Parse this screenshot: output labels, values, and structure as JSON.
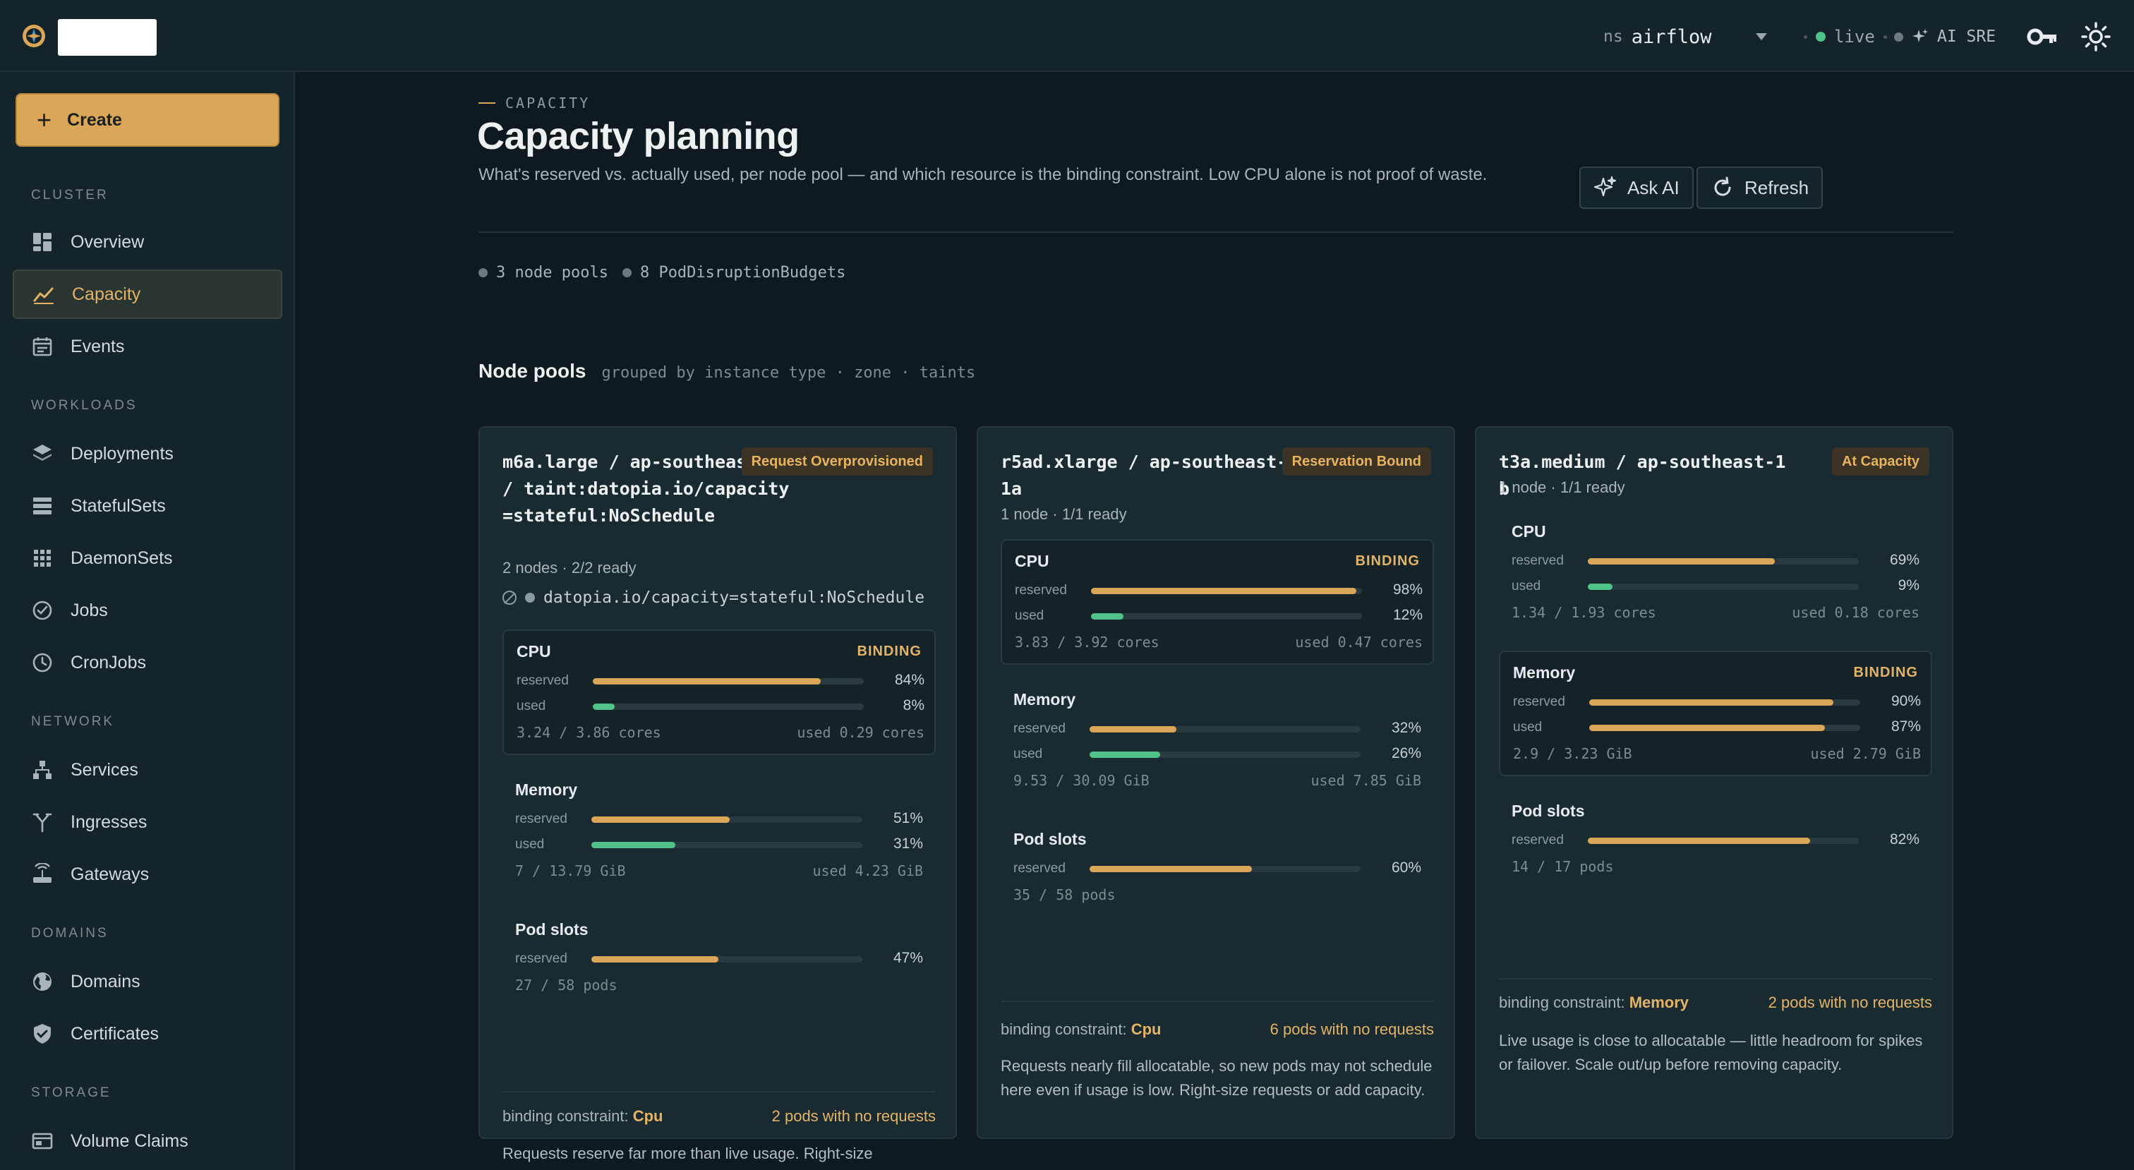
{
  "topbar": {
    "ns_prefix": "ns",
    "namespace": "airflow",
    "live_label": "live",
    "ai_sre_label": "AI SRE"
  },
  "sidebar": {
    "create_label": "Create",
    "sections": {
      "cluster": "CLUSTER",
      "workloads": "WORKLOADS",
      "network": "NETWORK",
      "domains": "DOMAINS",
      "storage": "STORAGE"
    },
    "items": {
      "overview": "Overview",
      "capacity": "Capacity",
      "events": "Events",
      "deployments": "Deployments",
      "statefulsets": "StatefulSets",
      "daemonsets": "DaemonSets",
      "jobs": "Jobs",
      "cronjobs": "CronJobs",
      "services": "Services",
      "ingresses": "Ingresses",
      "gateways": "Gateways",
      "domains": "Domains",
      "certificates": "Certificates",
      "volume_claims": "Volume Claims"
    },
    "active": "capacity"
  },
  "page": {
    "eyebrow": "CAPACITY",
    "title": "Capacity planning",
    "subtitle": "What's reserved vs. actually used, per node pool — and which resource is the binding constraint. Low CPU alone is not proof of waste.",
    "ask_ai_label": "Ask AI",
    "refresh_label": "Refresh",
    "summary_node_pools": "3 node pools",
    "summary_pdbs": "8 PodDisruptionBudgets",
    "node_pools_title": "Node pools",
    "node_pools_subtitle": "grouped by instance type · zone · taints"
  },
  "labels": {
    "reserved": "reserved",
    "used": "used",
    "binding": "BINDING",
    "binding_constraint": "binding constraint:",
    "cpu": "CPU",
    "memory": "Memory",
    "pod_slots": "Pod slots"
  },
  "pools": [
    {
      "title": "m6a.large / ap-southeast-1a / taint:datopia.io/capacity=stateful:NoSchedule",
      "badge": "Request Overprovisioned",
      "meta": "2 nodes · 2/2 ready",
      "taint": "datopia.io/capacity=stateful:NoSchedule",
      "cpu": {
        "reserved": 84,
        "used": 8,
        "reserved_pct": "84%",
        "used_pct": "8%",
        "foot_left": "3.24 / 3.86 cores",
        "foot_right": "used 0.29 cores"
      },
      "memory": {
        "reserved": 51,
        "used": 31,
        "reserved_pct": "51%",
        "used_pct": "31%",
        "foot_left": "7 / 13.79 GiB",
        "foot_right": "used 4.23 GiB"
      },
      "pods": {
        "reserved": 47,
        "reserved_pct": "47%",
        "foot_left": "27 / 58 pods"
      },
      "constraint": "Cpu",
      "no_requests": "2 pods with no requests",
      "note": "Requests reserve far more than live usage. Right-size requests first, then re-test whether a node can be removed."
    },
    {
      "title": "r5ad.xlarge / ap-southeast-1a",
      "badge": "Reservation Bound",
      "meta": "1 node · 1/1 ready",
      "cpu": {
        "reserved": 98,
        "used": 12,
        "reserved_pct": "98%",
        "used_pct": "12%",
        "foot_left": "3.83 / 3.92 cores",
        "foot_right": "used 0.47 cores"
      },
      "memory": {
        "reserved": 32,
        "used": 26,
        "reserved_pct": "32%",
        "used_pct": "26%",
        "foot_left": "9.53 / 30.09 GiB",
        "foot_right": "used 7.85 GiB"
      },
      "pods": {
        "reserved": 60,
        "reserved_pct": "60%",
        "foot_left": "35 / 58 pods"
      },
      "constraint": "Cpu",
      "no_requests": "6 pods with no requests",
      "note": "Requests nearly fill allocatable, so new pods may not schedule here even if usage is low. Right-size requests or add capacity."
    },
    {
      "title": "t3a.medium / ap-southeast-1b",
      "badge": "At Capacity",
      "meta": "1 node · 1/1 ready",
      "cpu": {
        "reserved": 69,
        "used": 9,
        "reserved_pct": "69%",
        "used_pct": "9%",
        "foot_left": "1.34 / 1.93 cores",
        "foot_right": "used 0.18 cores"
      },
      "memory": {
        "reserved": 90,
        "used": 87,
        "reserved_pct": "90%",
        "used_pct": "87%",
        "foot_left": "2.9 / 3.23 GiB",
        "foot_right": "used 2.79 GiB"
      },
      "pods": {
        "reserved": 82,
        "reserved_pct": "82%",
        "foot_left": "14 / 17 pods"
      },
      "constraint": "Memory",
      "no_requests": "2 pods with no requests",
      "note": "Live usage is close to allocatable — little headroom for spikes or failover. Scale out/up before removing capacity."
    }
  ]
}
